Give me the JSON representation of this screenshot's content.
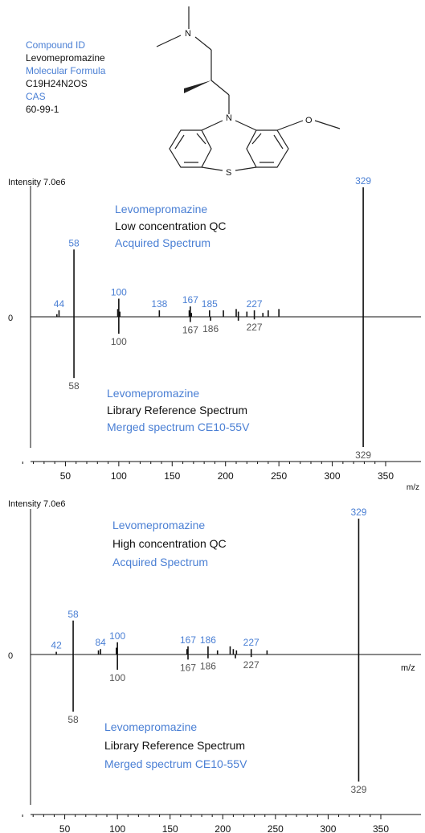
{
  "compound": {
    "id_label": "Compound ID",
    "id_value": "Levomepromazine",
    "formula_label": "Molecular Formula",
    "formula_value": "C19H24N2OS",
    "cas_label": "CAS",
    "cas_value": "60-99-1"
  },
  "structure_atoms": {
    "n_amine": "N",
    "n_ring": "N",
    "s_ring": "S",
    "o_methoxy": "O"
  },
  "colors": {
    "accent": "#4a7fd4",
    "text": "#111111",
    "axis": "#222222",
    "label_gray": "#555555"
  },
  "chart_data": [
    {
      "type": "mirror-stick",
      "intensity_label": "Intensity 7.0e6",
      "xlabel": "m/z",
      "zero_label": "0",
      "xlim": [
        0,
        350
      ],
      "xticks": [
        50,
        100,
        150,
        200,
        250,
        300,
        350
      ],
      "top_text": [
        "Levomepromazine",
        "Low concentration QC",
        "Acquired Spectrum"
      ],
      "bottom_text": [
        "Levomepromazine",
        "Library Reference Spectrum",
        "Merged spectrum CE10-55V"
      ],
      "top_peaks": [
        {
          "mz": 42,
          "rel": 0.02
        },
        {
          "mz": 44,
          "rel": 0.05,
          "label": "44"
        },
        {
          "mz": 58,
          "rel": 0.52,
          "label": "58"
        },
        {
          "mz": 99,
          "rel": 0.06
        },
        {
          "mz": 100,
          "rel": 0.14,
          "label": "100"
        },
        {
          "mz": 101,
          "rel": 0.04
        },
        {
          "mz": 138,
          "rel": 0.05,
          "label": "138"
        },
        {
          "mz": 166,
          "rel": 0.05
        },
        {
          "mz": 167,
          "rel": 0.08,
          "label": "167"
        },
        {
          "mz": 168,
          "rel": 0.03
        },
        {
          "mz": 185,
          "rel": 0.05,
          "label": "185"
        },
        {
          "mz": 198,
          "rel": 0.05
        },
        {
          "mz": 210,
          "rel": 0.06
        },
        {
          "mz": 212,
          "rel": 0.04
        },
        {
          "mz": 220,
          "rel": 0.04
        },
        {
          "mz": 227,
          "rel": 0.05,
          "label": "227"
        },
        {
          "mz": 235,
          "rel": 0.03
        },
        {
          "mz": 240,
          "rel": 0.05
        },
        {
          "mz": 250,
          "rel": 0.06
        },
        {
          "mz": 329,
          "rel": 1.0,
          "label": "329"
        }
      ],
      "bottom_peaks": [
        {
          "mz": 58,
          "rel": 0.47,
          "label": "58"
        },
        {
          "mz": 100,
          "rel": 0.13,
          "label": "100"
        },
        {
          "mz": 167,
          "rel": 0.04,
          "label": "167"
        },
        {
          "mz": 186,
          "rel": 0.03,
          "label": "186"
        },
        {
          "mz": 212,
          "rel": 0.03
        },
        {
          "mz": 227,
          "rel": 0.02,
          "label": "227"
        },
        {
          "mz": 329,
          "rel": 1.0,
          "label": "329"
        }
      ]
    },
    {
      "type": "mirror-stick",
      "intensity_label": "Intensity 7.0e6",
      "xlabel": "m/z",
      "zero_label": "0",
      "inline_label": "m/z",
      "xlim": [
        0,
        350
      ],
      "xticks": [
        50,
        100,
        150,
        200,
        250,
        300,
        350
      ],
      "top_text": [
        "Levomepromazine",
        "High concentration QC",
        "Acquired Spectrum"
      ],
      "bottom_text": [
        "Levomepromazine",
        "Library Reference Spectrum",
        "Merged spectrum CE10-55V"
      ],
      "top_peaks": [
        {
          "mz": 42,
          "rel": 0.02,
          "label": "42"
        },
        {
          "mz": 58,
          "rel": 0.25,
          "label": "58"
        },
        {
          "mz": 82,
          "rel": 0.03
        },
        {
          "mz": 84,
          "rel": 0.04,
          "label": "84"
        },
        {
          "mz": 99,
          "rel": 0.05
        },
        {
          "mz": 100,
          "rel": 0.09,
          "label": "100"
        },
        {
          "mz": 166,
          "rel": 0.04
        },
        {
          "mz": 167,
          "rel": 0.06,
          "label": "167"
        },
        {
          "mz": 186,
          "rel": 0.06,
          "label": "186"
        },
        {
          "mz": 195,
          "rel": 0.03
        },
        {
          "mz": 207,
          "rel": 0.06
        },
        {
          "mz": 210,
          "rel": 0.04
        },
        {
          "mz": 213,
          "rel": 0.03
        },
        {
          "mz": 227,
          "rel": 0.04,
          "label": "227"
        },
        {
          "mz": 242,
          "rel": 0.03
        },
        {
          "mz": 329,
          "rel": 1.0,
          "label": "329"
        }
      ],
      "bottom_peaks": [
        {
          "mz": 58,
          "rel": 0.45,
          "label": "58"
        },
        {
          "mz": 100,
          "rel": 0.12,
          "label": "100"
        },
        {
          "mz": 167,
          "rel": 0.04,
          "label": "167"
        },
        {
          "mz": 186,
          "rel": 0.03,
          "label": "186"
        },
        {
          "mz": 212,
          "rel": 0.03
        },
        {
          "mz": 227,
          "rel": 0.02,
          "label": "227"
        },
        {
          "mz": 329,
          "rel": 1.0,
          "label": "329"
        }
      ]
    }
  ]
}
